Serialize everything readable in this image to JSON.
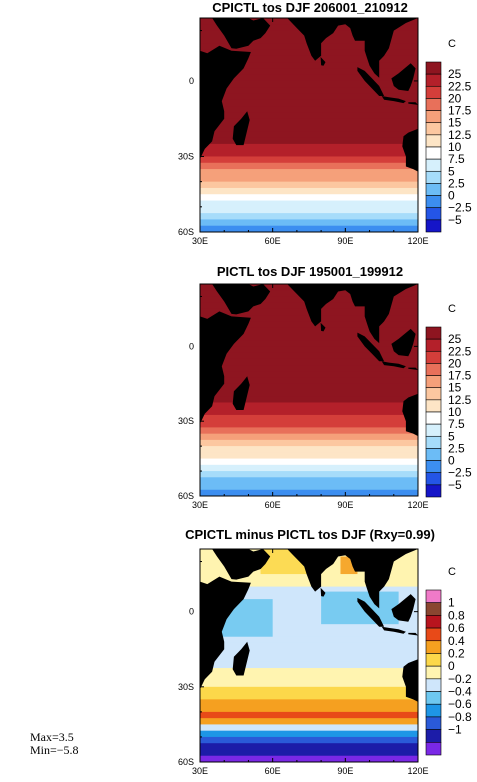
{
  "chart_data": [
    {
      "type": "heatmap",
      "title": "CPICTL tos DJF 206001_210912",
      "x_ticks": [
        "30E",
        "60E",
        "90E",
        "120E"
      ],
      "y_ticks": [
        "0",
        "30S",
        "60S"
      ],
      "colorbar_unit": "C",
      "colorbar_levels": [
        -5,
        -2.5,
        0,
        2.5,
        5,
        7.5,
        10,
        12.5,
        15,
        17.5,
        20,
        22.5,
        25
      ],
      "colorbar_labels": [
        "25",
        "22.5",
        "20",
        "17.5",
        "15",
        "12.5",
        "10",
        "7.5",
        "5",
        "2.5",
        "0",
        "−2.5",
        "−5"
      ],
      "colors": [
        "#1515c8",
        "#2455e6",
        "#3c8ef0",
        "#6cbcf6",
        "#a6dcfa",
        "#d6f0fc",
        "#ffffff",
        "#fde5c6",
        "#fcc7a0",
        "#f5a07a",
        "#e8705a",
        "#d43e3a",
        "#b4202a",
        "#8e1520"
      ],
      "latitude_band_values": [
        {
          "lat": 20,
          "value": 28
        },
        {
          "lat": 0,
          "value": 28
        },
        {
          "lat": -15,
          "value": 27.5
        },
        {
          "lat": -25,
          "value": 25
        },
        {
          "lat": -30,
          "value": 22
        },
        {
          "lat": -35,
          "value": 18
        },
        {
          "lat": -40,
          "value": 14
        },
        {
          "lat": -45,
          "value": 10
        },
        {
          "lat": -50,
          "value": 6
        },
        {
          "lat": -55,
          "value": 2
        },
        {
          "lat": -60,
          "value": -1
        }
      ]
    },
    {
      "type": "heatmap",
      "title": "PICTL tos DJF 195001_199912",
      "x_ticks": [
        "30E",
        "60E",
        "90E",
        "120E"
      ],
      "y_ticks": [
        "0",
        "30S",
        "60S"
      ],
      "colorbar_unit": "C",
      "colorbar_levels": [
        -5,
        -2.5,
        0,
        2.5,
        5,
        7.5,
        10,
        12.5,
        15,
        17.5,
        20,
        22.5,
        25
      ],
      "colorbar_labels": [
        "25",
        "22.5",
        "20",
        "17.5",
        "15",
        "12.5",
        "10",
        "7.5",
        "5",
        "2.5",
        "0",
        "−2.5",
        "−5"
      ],
      "colors": [
        "#1515c8",
        "#2455e6",
        "#3c8ef0",
        "#6cbcf6",
        "#a6dcfa",
        "#d6f0fc",
        "#ffffff",
        "#fde5c6",
        "#fcc7a0",
        "#f5a07a",
        "#e8705a",
        "#d43e3a",
        "#b4202a",
        "#8e1520"
      ],
      "latitude_band_values": [
        {
          "lat": 20,
          "value": 27.5
        },
        {
          "lat": 0,
          "value": 27.5
        },
        {
          "lat": -15,
          "value": 27
        },
        {
          "lat": -25,
          "value": 24
        },
        {
          "lat": -30,
          "value": 21
        },
        {
          "lat": -35,
          "value": 17
        },
        {
          "lat": -40,
          "value": 13
        },
        {
          "lat": -45,
          "value": 9
        },
        {
          "lat": -50,
          "value": 5
        },
        {
          "lat": -55,
          "value": 1.5
        },
        {
          "lat": -60,
          "value": -1.5
        }
      ]
    },
    {
      "type": "heatmap",
      "title": "CPICTL minus PICTL tos DJF (Rxy=0.99)",
      "x_ticks": [
        "30E",
        "60E",
        "90E",
        "120E"
      ],
      "y_ticks": [
        "0",
        "30S",
        "60S"
      ],
      "colorbar_unit": "C",
      "colorbar_levels": [
        -1,
        -0.8,
        -0.6,
        -0.4,
        -0.2,
        0,
        0.2,
        0.4,
        0.6,
        0.8,
        1
      ],
      "colorbar_labels": [
        "1",
        "0.8",
        "0.6",
        "0.4",
        "0.2",
        "0",
        "−0.2",
        "−0.4",
        "−0.6",
        "−0.8",
        "−1"
      ],
      "colors": [
        "#7a28e6",
        "#1c1ca8",
        "#2a5ad8",
        "#1e96e6",
        "#6ec8f0",
        "#cfe6fb",
        "#fff4b0",
        "#fcd84a",
        "#f5a020",
        "#e84a18",
        "#b8141e",
        "#8a4630",
        "#f07ac8"
      ],
      "latitude_band_values": [
        {
          "lat": 20,
          "value": 0.1
        },
        {
          "lat": 0,
          "value": -0.1
        },
        {
          "lat": -20,
          "value": -0.1
        },
        {
          "lat": -32,
          "value": 0.3
        },
        {
          "lat": -38,
          "value": 0.5
        },
        {
          "lat": -42,
          "value": 0.8
        },
        {
          "lat": -48,
          "value": -0.5
        },
        {
          "lat": -55,
          "value": -0.9
        },
        {
          "lat": -60,
          "value": -1.2
        }
      ],
      "max_label": "Max=3.5",
      "min_label": "Min=−5.8"
    }
  ]
}
